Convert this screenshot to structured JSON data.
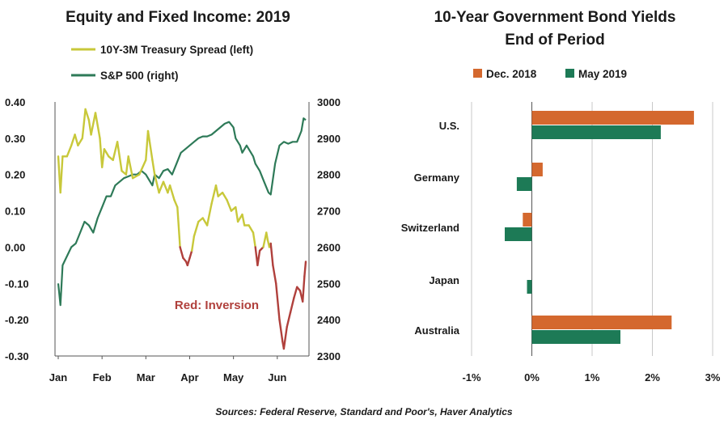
{
  "colors": {
    "spread": "#c8c83a",
    "inversion": "#b0403c",
    "sp500": "#2e7a58",
    "dec2018": "#d4682e",
    "may2019": "#1d7a56",
    "grid": "#c8c8c8",
    "axis": "#555555"
  },
  "footer": {
    "source": "Sources: Federal Reserve, Standard and Poor's, Haver Analytics"
  },
  "chart_data": [
    {
      "type": "line",
      "title": "Equity and Fixed Income: 2019",
      "annotation": "Red: Inversion",
      "x_tick_labels": [
        "Jan",
        "Feb",
        "Mar",
        "Apr",
        "May",
        "Jun"
      ],
      "y_left": {
        "lim": [
          -0.3,
          0.4
        ],
        "ticks": [
          "0.40",
          "0.30",
          "0.20",
          "0.10",
          "0.00",
          "-0.10",
          "-0.20",
          "-0.30"
        ]
      },
      "y_right": {
        "lim": [
          2300,
          3000
        ],
        "ticks": [
          "3000",
          "2900",
          "2800",
          "2700",
          "2600",
          "2500",
          "2400",
          "2300"
        ]
      },
      "legend_position": "top-left",
      "grid": false,
      "x_domain": [
        0,
        5.65
      ],
      "series": [
        {
          "name": "10Y-3M Treasury Spread (left)",
          "axis": "left",
          "points": [
            [
              0.0,
              0.25
            ],
            [
              0.05,
              0.15
            ],
            [
              0.1,
              0.25
            ],
            [
              0.2,
              0.25
            ],
            [
              0.3,
              0.28
            ],
            [
              0.38,
              0.31
            ],
            [
              0.45,
              0.28
            ],
            [
              0.55,
              0.3
            ],
            [
              0.62,
              0.38
            ],
            [
              0.7,
              0.35
            ],
            [
              0.75,
              0.31
            ],
            [
              0.85,
              0.37
            ],
            [
              0.95,
              0.3
            ],
            [
              1.0,
              0.22
            ],
            [
              1.05,
              0.27
            ],
            [
              1.15,
              0.25
            ],
            [
              1.25,
              0.24
            ],
            [
              1.35,
              0.29
            ],
            [
              1.45,
              0.21
            ],
            [
              1.55,
              0.2
            ],
            [
              1.6,
              0.25
            ],
            [
              1.7,
              0.19
            ],
            [
              1.85,
              0.2
            ],
            [
              2.0,
              0.24
            ],
            [
              2.05,
              0.32
            ],
            [
              2.15,
              0.24
            ],
            [
              2.2,
              0.2
            ],
            [
              2.3,
              0.15
            ],
            [
              2.4,
              0.18
            ],
            [
              2.5,
              0.15
            ],
            [
              2.55,
              0.17
            ],
            [
              2.65,
              0.13
            ],
            [
              2.72,
              0.11
            ],
            [
              2.78,
              0.0
            ],
            [
              2.85,
              -0.03
            ],
            [
              2.92,
              -0.04
            ],
            [
              2.95,
              -0.05
            ],
            [
              3.0,
              -0.03
            ],
            [
              3.05,
              -0.01
            ],
            [
              3.1,
              0.03
            ],
            [
              3.2,
              0.07
            ],
            [
              3.3,
              0.08
            ],
            [
              3.4,
              0.06
            ],
            [
              3.5,
              0.12
            ],
            [
              3.6,
              0.17
            ],
            [
              3.65,
              0.14
            ],
            [
              3.75,
              0.15
            ],
            [
              3.85,
              0.13
            ],
            [
              3.95,
              0.1
            ],
            [
              4.05,
              0.11
            ],
            [
              4.1,
              0.07
            ],
            [
              4.2,
              0.09
            ],
            [
              4.25,
              0.06
            ],
            [
              4.35,
              0.06
            ],
            [
              4.45,
              0.04
            ],
            [
              4.5,
              0.0
            ],
            [
              4.55,
              -0.05
            ],
            [
              4.6,
              -0.01
            ],
            [
              4.68,
              0.0
            ],
            [
              4.75,
              0.04
            ],
            [
              4.78,
              0.02
            ],
            [
              4.82,
              -0.0
            ],
            [
              4.85,
              0.01
            ],
            [
              4.9,
              -0.05
            ],
            [
              4.97,
              -0.1
            ],
            [
              5.05,
              -0.2
            ],
            [
              5.12,
              -0.26
            ],
            [
              5.15,
              -0.28
            ],
            [
              5.22,
              -0.22
            ],
            [
              5.3,
              -0.18
            ],
            [
              5.38,
              -0.14
            ],
            [
              5.45,
              -0.11
            ],
            [
              5.52,
              -0.12
            ],
            [
              5.58,
              -0.15
            ],
            [
              5.62,
              -0.08
            ],
            [
              5.65,
              -0.04
            ]
          ]
        },
        {
          "name": "S&P 500 (right)",
          "axis": "right",
          "points": [
            [
              0.0,
              2500
            ],
            [
              0.05,
              2440
            ],
            [
              0.1,
              2550
            ],
            [
              0.2,
              2575
            ],
            [
              0.3,
              2600
            ],
            [
              0.4,
              2610
            ],
            [
              0.5,
              2640
            ],
            [
              0.6,
              2670
            ],
            [
              0.7,
              2660
            ],
            [
              0.8,
              2640
            ],
            [
              0.9,
              2680
            ],
            [
              1.0,
              2710
            ],
            [
              1.1,
              2740
            ],
            [
              1.2,
              2740
            ],
            [
              1.3,
              2770
            ],
            [
              1.4,
              2780
            ],
            [
              1.5,
              2790
            ],
            [
              1.6,
              2795
            ],
            [
              1.7,
              2800
            ],
            [
              1.8,
              2800
            ],
            [
              1.9,
              2810
            ],
            [
              2.0,
              2800
            ],
            [
              2.1,
              2780
            ],
            [
              2.15,
              2770
            ],
            [
              2.2,
              2800
            ],
            [
              2.3,
              2790
            ],
            [
              2.4,
              2810
            ],
            [
              2.5,
              2815
            ],
            [
              2.6,
              2800
            ],
            [
              2.7,
              2830
            ],
            [
              2.8,
              2860
            ],
            [
              2.9,
              2870
            ],
            [
              3.0,
              2880
            ],
            [
              3.1,
              2890
            ],
            [
              3.2,
              2900
            ],
            [
              3.3,
              2905
            ],
            [
              3.4,
              2905
            ],
            [
              3.5,
              2910
            ],
            [
              3.6,
              2920
            ],
            [
              3.7,
              2930
            ],
            [
              3.8,
              2940
            ],
            [
              3.9,
              2945
            ],
            [
              4.0,
              2930
            ],
            [
              4.05,
              2900
            ],
            [
              4.15,
              2880
            ],
            [
              4.2,
              2860
            ],
            [
              4.3,
              2880
            ],
            [
              4.35,
              2870
            ],
            [
              4.45,
              2850
            ],
            [
              4.5,
              2830
            ],
            [
              4.6,
              2810
            ],
            [
              4.7,
              2780
            ],
            [
              4.8,
              2750
            ],
            [
              4.85,
              2745
            ],
            [
              4.95,
              2830
            ],
            [
              5.05,
              2880
            ],
            [
              5.15,
              2890
            ],
            [
              5.25,
              2885
            ],
            [
              5.35,
              2890
            ],
            [
              5.45,
              2890
            ],
            [
              5.55,
              2920
            ],
            [
              5.6,
              2955
            ],
            [
              5.65,
              2950
            ]
          ]
        }
      ]
    },
    {
      "type": "bar",
      "orientation": "horizontal",
      "title_lines": [
        "10-Year Government Bond Yields",
        "End of Period"
      ],
      "categories": [
        "U.S.",
        "Germany",
        "Switzerland",
        "Japan",
        "Australia"
      ],
      "series": [
        {
          "name": "Dec. 2018",
          "values": [
            2.69,
            0.18,
            -0.15,
            0.0,
            2.32
          ]
        },
        {
          "name": "May 2019",
          "values": [
            2.14,
            -0.25,
            -0.45,
            -0.08,
            1.47
          ]
        }
      ],
      "xlim": [
        -1,
        3
      ],
      "x_ticks": [
        -1,
        0,
        1,
        2,
        3
      ],
      "x_tick_labels": [
        "-1%",
        "0%",
        "1%",
        "2%",
        "3%"
      ],
      "grid": true,
      "legend_position": "top"
    }
  ]
}
